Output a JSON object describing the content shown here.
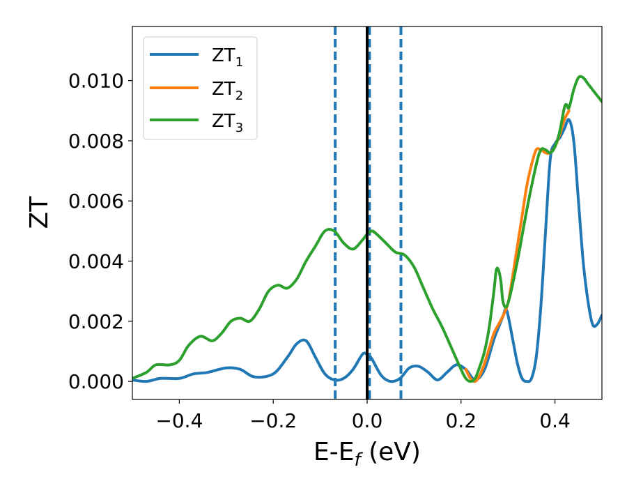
{
  "chart_data": {
    "type": "line",
    "title": "",
    "xlabel_main": "E-E",
    "xlabel_sub": "f",
    "xlabel_unit": " (eV)",
    "ylabel": "ZT",
    "xlim": [
      -0.5,
      0.5
    ],
    "ylim": [
      -0.0006,
      0.0118
    ],
    "xticks": [
      -0.4,
      -0.2,
      0.0,
      0.2,
      0.4
    ],
    "xtick_labels": [
      "−0.4",
      "−0.2",
      "0.0",
      "0.2",
      "0.4"
    ],
    "yticks": [
      0.0,
      0.002,
      0.004,
      0.006,
      0.008,
      0.01
    ],
    "ytick_labels": [
      "0.000",
      "0.002",
      "0.004",
      "0.006",
      "0.008",
      "0.010"
    ],
    "grid": false,
    "legend_position": "top-left",
    "vlines": [
      {
        "x": -0.068,
        "style": "dashed",
        "color": "#1f77b4"
      },
      {
        "x": 0.005,
        "style": "dashed",
        "color": "#1f77b4"
      },
      {
        "x": 0.072,
        "style": "dashed",
        "color": "#1f77b4"
      },
      {
        "x": 0.0,
        "style": "solid",
        "color": "#000000"
      }
    ],
    "series": [
      {
        "name": "ZT",
        "name_sub": "1",
        "color": "#1f77b4",
        "x": [
          -0.5,
          -0.47,
          -0.44,
          -0.4,
          -0.37,
          -0.34,
          -0.3,
          -0.27,
          -0.24,
          -0.2,
          -0.17,
          -0.15,
          -0.13,
          -0.11,
          -0.09,
          -0.07,
          -0.05,
          -0.03,
          -0.01,
          0.0,
          0.01,
          0.03,
          0.05,
          0.07,
          0.09,
          0.11,
          0.13,
          0.15,
          0.17,
          0.19,
          0.21,
          0.23,
          0.25,
          0.27,
          0.28,
          0.29,
          0.295,
          0.3,
          0.31,
          0.32,
          0.33,
          0.34,
          0.35,
          0.36,
          0.37,
          0.38,
          0.39,
          0.4,
          0.41,
          0.42,
          0.43,
          0.44,
          0.45,
          0.46,
          0.47,
          0.48,
          0.49,
          0.5
        ],
        "y": [
          5e-05,
          0.0,
          0.0001,
          0.0001,
          0.00025,
          0.0003,
          0.00045,
          0.0004,
          0.00015,
          0.00025,
          0.0008,
          0.00125,
          0.00135,
          0.0008,
          0.00025,
          5e-05,
          0.0001,
          0.0004,
          0.0009,
          0.0009,
          0.00075,
          0.0002,
          0.0,
          0.0001,
          0.00045,
          0.0005,
          0.0003,
          5e-05,
          0.0003,
          0.00055,
          0.0004,
          5e-05,
          0.0004,
          0.0014,
          0.0018,
          0.0022,
          0.0024,
          0.0022,
          0.0014,
          0.0006,
          0.0001,
          0.0,
          0.0001,
          0.0008,
          0.0025,
          0.005,
          0.0074,
          0.0079,
          0.0081,
          0.0084,
          0.0087,
          0.008,
          0.006,
          0.004,
          0.0027,
          0.0019,
          0.0019,
          0.0022
        ]
      },
      {
        "name": "ZT",
        "name_sub": "2",
        "color": "#ff7f0e",
        "x": [
          0.21,
          0.22,
          0.23,
          0.24,
          0.25,
          0.26,
          0.27,
          0.28,
          0.29,
          0.3,
          0.31,
          0.32,
          0.33,
          0.34,
          0.35,
          0.36,
          0.37,
          0.38,
          0.39,
          0.4,
          0.41,
          0.42,
          0.43
        ],
        "y": [
          0.0004,
          0.0001,
          0.0,
          0.0002,
          0.0006,
          0.0011,
          0.0016,
          0.0019,
          0.0022,
          0.0026,
          0.0035,
          0.0045,
          0.0055,
          0.0065,
          0.0072,
          0.0077,
          0.0077,
          0.0076,
          0.0076,
          0.0078,
          0.0082,
          0.0087,
          0.009
        ]
      },
      {
        "name": "ZT",
        "name_sub": "3",
        "color": "#2ca02c",
        "x": [
          -0.5,
          -0.47,
          -0.45,
          -0.42,
          -0.4,
          -0.38,
          -0.355,
          -0.33,
          -0.31,
          -0.29,
          -0.27,
          -0.25,
          -0.23,
          -0.21,
          -0.19,
          -0.17,
          -0.15,
          -0.13,
          -0.11,
          -0.09,
          -0.07,
          -0.05,
          -0.03,
          -0.01,
          0.0,
          0.01,
          0.02,
          0.04,
          0.06,
          0.08,
          0.1,
          0.12,
          0.14,
          0.16,
          0.18,
          0.2,
          0.21,
          0.22,
          0.23,
          0.24,
          0.25,
          0.26,
          0.27,
          0.275,
          0.28,
          0.285,
          0.29,
          0.3,
          0.32,
          0.34,
          0.36,
          0.37,
          0.38,
          0.39,
          0.4,
          0.41,
          0.42,
          0.425,
          0.43,
          0.44,
          0.45,
          0.46,
          0.47,
          0.48,
          0.5
        ],
        "y": [
          0.0001,
          0.0003,
          0.00055,
          0.00055,
          0.0007,
          0.0012,
          0.0015,
          0.00135,
          0.0016,
          0.002,
          0.0021,
          0.002,
          0.0024,
          0.003,
          0.0032,
          0.0031,
          0.0034,
          0.004,
          0.0045,
          0.005,
          0.005,
          0.0046,
          0.0044,
          0.0047,
          0.0049,
          0.005,
          0.0049,
          0.0046,
          0.0043,
          0.0042,
          0.0038,
          0.0031,
          0.0024,
          0.0018,
          0.0011,
          0.0004,
          0.0001,
          0.0,
          0.0001,
          0.0005,
          0.001,
          0.0018,
          0.003,
          0.0037,
          0.0037,
          0.0033,
          0.0026,
          0.0026,
          0.004,
          0.0057,
          0.0072,
          0.0077,
          0.0077,
          0.0076,
          0.0078,
          0.0083,
          0.0091,
          0.0092,
          0.0091,
          0.0097,
          0.0101,
          0.0101,
          0.0099,
          0.0097,
          0.0093
        ]
      }
    ]
  }
}
